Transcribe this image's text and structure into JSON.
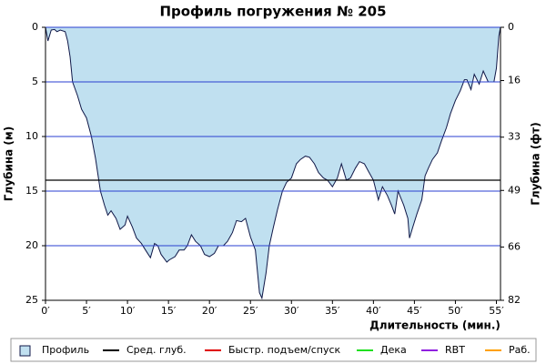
{
  "chart_data": {
    "type": "area",
    "title": "Профиль погружения № 205",
    "x_label": "Длительность (мин.)",
    "y_label": "Глубина (м)",
    "y2_label": "Глубина (фт)",
    "xlim": [
      0,
      55.5
    ],
    "xticks": [
      {
        "value": 0,
        "label": "0′"
      },
      {
        "value": 5,
        "label": "5′"
      },
      {
        "value": 10,
        "label": "10′"
      },
      {
        "value": 15,
        "label": "15′"
      },
      {
        "value": 20,
        "label": "20′"
      },
      {
        "value": 25,
        "label": "25′"
      },
      {
        "value": 30,
        "label": "30′"
      },
      {
        "value": 35,
        "label": "35′"
      },
      {
        "value": 40,
        "label": "40′"
      },
      {
        "value": 45,
        "label": "45′"
      },
      {
        "value": 50,
        "label": "50′"
      },
      {
        "value": 55,
        "label": "55′"
      }
    ],
    "ylim": [
      0,
      25
    ],
    "yticks": [
      0,
      5,
      10,
      15,
      20,
      25
    ],
    "y_inverted": true,
    "y2lim": [
      0,
      82
    ],
    "y2ticks": [
      0,
      16,
      33,
      49,
      66,
      82
    ],
    "grid": true,
    "grid_color": "#2a3fd0",
    "x": [
      0,
      0.3,
      0.7,
      1.1,
      1.4,
      1.8,
      2.4,
      2.7,
      3.0,
      3.3,
      3.9,
      4.4,
      5.0,
      5.6,
      6.1,
      6.7,
      7.2,
      7.6,
      8.0,
      8.6,
      9.1,
      9.7,
      10.0,
      10.6,
      11.1,
      11.7,
      12.2,
      12.8,
      13.3,
      13.7,
      14.1,
      14.8,
      15.1,
      15.8,
      16.3,
      16.9,
      17.3,
      17.8,
      18.3,
      18.9,
      19.4,
      20.0,
      20.6,
      21.1,
      21.7,
      22.2,
      22.8,
      23.3,
      23.9,
      24.4,
      25.0,
      25.6,
      26.1,
      26.4,
      26.9,
      27.3,
      27.8,
      28.3,
      28.9,
      29.4,
      30.0,
      30.6,
      31.1,
      31.7,
      32.2,
      32.8,
      33.3,
      33.9,
      34.4,
      35.0,
      35.6,
      36.1,
      36.7,
      37.2,
      37.8,
      38.3,
      38.9,
      39.4,
      40.0,
      40.6,
      41.1,
      41.7,
      42.2,
      42.6,
      43.0,
      43.7,
      44.2,
      44.4,
      44.8,
      45.3,
      45.9,
      46.3,
      46.7,
      47.2,
      47.8,
      48.3,
      48.9,
      49.4,
      50.0,
      50.6,
      51.1,
      51.4,
      51.9,
      52.3,
      52.9,
      53.4,
      54.0,
      54.7,
      55.0,
      55.3,
      55.5
    ],
    "series": [
      {
        "name": "Профиль",
        "color": "#c0e0f0",
        "stroke": "#101848",
        "values": [
          0,
          1.25,
          0.25,
          0.2,
          0.4,
          0.25,
          0.4,
          1.25,
          2.7,
          5,
          6.25,
          7.5,
          8.3,
          10,
          12,
          15,
          16.3,
          17.2,
          16.8,
          17.5,
          18.5,
          18.1,
          17.3,
          18.3,
          19.3,
          19.8,
          20.4,
          21.1,
          19.8,
          20,
          20.8,
          21.5,
          21.3,
          21,
          20.4,
          20.4,
          20,
          19,
          19.6,
          20,
          20.8,
          21,
          20.7,
          20,
          20,
          19.6,
          18.8,
          17.7,
          17.8,
          17.5,
          19.2,
          20.4,
          24.3,
          24.8,
          22.5,
          20,
          18.3,
          16.7,
          15,
          14.2,
          13.8,
          12.5,
          12.1,
          11.8,
          11.9,
          12.5,
          13.3,
          13.8,
          14,
          14.6,
          13.8,
          12.5,
          14,
          13.8,
          12.9,
          12.3,
          12.5,
          13.2,
          14,
          15.8,
          14.6,
          15.4,
          16.3,
          17.1,
          15,
          16.3,
          17.5,
          19.3,
          18.3,
          17.1,
          15.8,
          13.6,
          12.9,
          12.1,
          11.5,
          10.4,
          9.2,
          7.9,
          6.7,
          5.8,
          4.8,
          4.8,
          5.7,
          4.3,
          5.2,
          4,
          5,
          5,
          3.75,
          0.8,
          0
        ]
      }
    ],
    "average_line": {
      "value": 14,
      "color": "#000000"
    },
    "legend": [
      {
        "label": "Сред. глуб.",
        "color": "#000000"
      },
      {
        "label": "Быстр. подъем/спуск",
        "color": "#e00000"
      },
      {
        "label": "Дека",
        "color": "#20e020"
      },
      {
        "label": "RBT",
        "color": "#9020e0"
      },
      {
        "label": "Раб.",
        "color": "#ffa000"
      }
    ]
  }
}
